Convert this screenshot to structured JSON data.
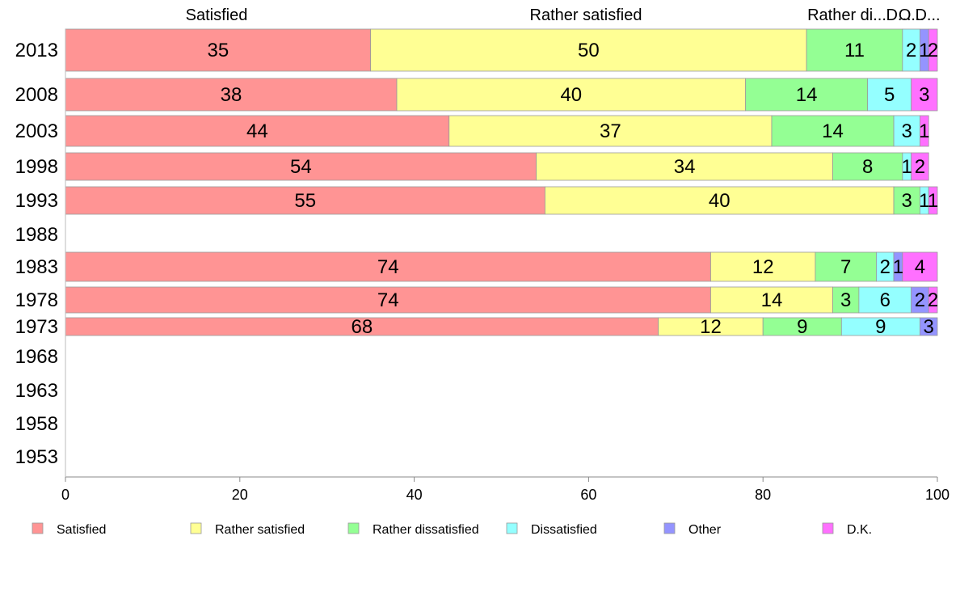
{
  "chart_data": {
    "type": "bar",
    "orientation": "horizontal",
    "stacked": true,
    "categories": [
      "2013",
      "2008",
      "2003",
      "1998",
      "1993",
      "1988",
      "1983",
      "1978",
      "1973",
      "1968",
      "1963",
      "1958",
      "1953"
    ],
    "series": [
      {
        "name": "Satisfied",
        "color": "#ff9494",
        "values": [
          35,
          38,
          44,
          54,
          55,
          null,
          74,
          74,
          68,
          null,
          null,
          null,
          null
        ]
      },
      {
        "name": "Rather satisfied",
        "color": "#ffff94",
        "values": [
          50,
          40,
          37,
          34,
          40,
          null,
          12,
          14,
          12,
          null,
          null,
          null,
          null
        ]
      },
      {
        "name": "Rather dissatisfied",
        "color": "#94ff94",
        "values": [
          11,
          14,
          14,
          8,
          3,
          null,
          7,
          3,
          9,
          null,
          null,
          null,
          null
        ]
      },
      {
        "name": "Dissatisfied",
        "color": "#94ffff",
        "values": [
          2,
          5,
          3,
          1,
          1,
          null,
          2,
          6,
          9,
          null,
          null,
          null,
          null
        ]
      },
      {
        "name": "Other",
        "color": "#9494ff",
        "values": [
          1,
          null,
          null,
          null,
          null,
          null,
          1,
          2,
          3,
          null,
          null,
          null,
          null
        ]
      },
      {
        "name": "D.K.",
        "color": "#ff70ff",
        "values": [
          2,
          3,
          1,
          2,
          1,
          null,
          4,
          2,
          null,
          null,
          null,
          null,
          null
        ]
      }
    ],
    "top_labels": [
      "Satisfied",
      "Rather satisfied",
      "Rather di...",
      "D...",
      "O...",
      "D..."
    ],
    "xlim": [
      0,
      100
    ],
    "xticks": [
      0,
      20,
      40,
      60,
      80,
      100
    ],
    "legend_position": "bottom",
    "grid": false
  }
}
